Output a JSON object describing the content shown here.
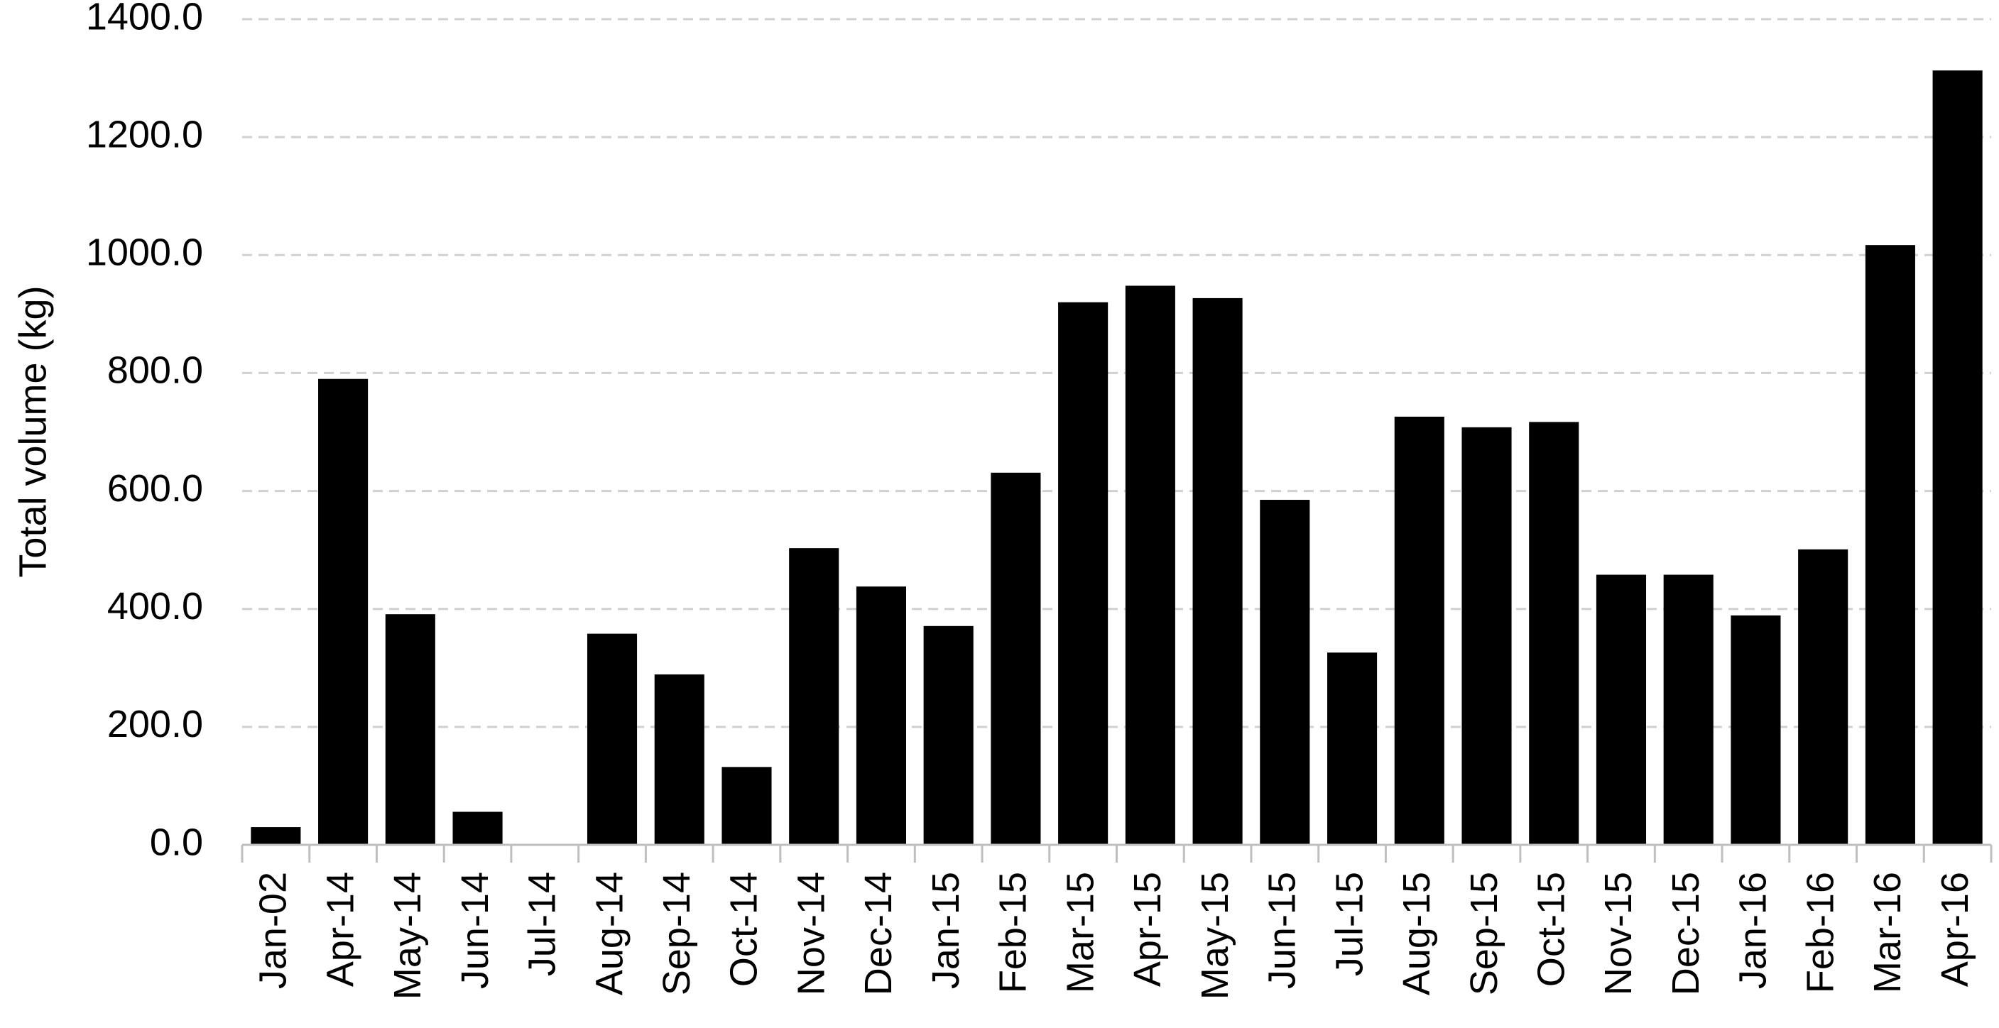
{
  "chart_data": {
    "type": "bar",
    "y_label": "Total volume (kg)",
    "categories": [
      "Jan-02",
      "Apr-14",
      "May-14",
      "Jun-14",
      "Jul-14",
      "Aug-14",
      "Sep-14",
      "Oct-14",
      "Nov-14",
      "Dec-14",
      "Jan-15",
      "Feb-15",
      "Mar-15",
      "Apr-15",
      "May-15",
      "Jun-15",
      "Jul-15",
      "Aug-15",
      "Sep-15",
      "Oct-15",
      "Nov-15",
      "Dec-15",
      "Jan-16",
      "Feb-16",
      "Mar-16",
      "Apr-16"
    ],
    "values": [
      30,
      790,
      391,
      56,
      0,
      358,
      289,
      132,
      503,
      438,
      371,
      631,
      920,
      948,
      927,
      585,
      326,
      726,
      708,
      717,
      458,
      458,
      389,
      501,
      1017,
      1313
    ],
    "color": "#000000",
    "ylim": [
      0,
      1400
    ],
    "yticks": [
      {
        "value": 0,
        "label": "0.0"
      },
      {
        "value": 200,
        "label": "200.0"
      },
      {
        "value": 400,
        "label": "400.0"
      },
      {
        "value": 600,
        "label": "600.0"
      },
      {
        "value": 800,
        "label": "800.0"
      },
      {
        "value": 1000,
        "label": "1000.0"
      },
      {
        "value": 1200,
        "label": "1200.0"
      },
      {
        "value": 1400,
        "label": "1400.0"
      }
    ],
    "grid": true
  }
}
